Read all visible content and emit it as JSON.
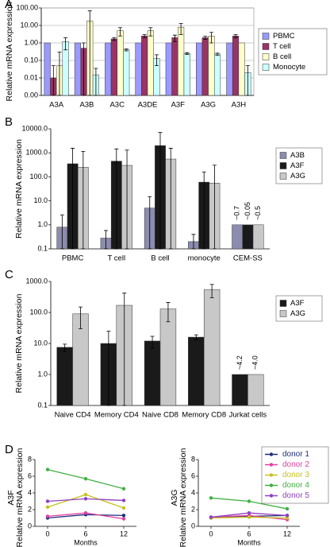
{
  "chart_data": [
    {
      "type": "bar",
      "panel_label": "A",
      "ylabel": "Relative mRNA expression",
      "log_scale": true,
      "grid": true,
      "legend": "right",
      "categories": [
        "A3A",
        "A3B",
        "A3C",
        "A3DE",
        "A3F",
        "A3G",
        "A3H"
      ],
      "ylim": [
        0.001,
        100
      ],
      "yticks": [
        {
          "value": 0.001,
          "label": "0.00"
        },
        {
          "value": 0.01,
          "label": "0.01"
        },
        {
          "value": 0.1,
          "label": "0.10"
        },
        {
          "value": 1,
          "label": "1.00"
        },
        {
          "value": 10,
          "label": "10.00"
        },
        {
          "value": 100,
          "label": "100.00"
        }
      ],
      "series": [
        {
          "name": "PBMC",
          "color": "#9999ff",
          "values": [
            1,
            1,
            1,
            1,
            1,
            1,
            1
          ]
        },
        {
          "name": "T cell",
          "color": "#993366",
          "values": [
            0.01,
            0.5,
            1.7,
            2.5,
            2,
            2,
            2.5
          ],
          "errors": [
            0.04,
            0.5,
            0.3,
            0.5,
            0.8,
            0.4,
            0.5
          ]
        },
        {
          "name": "B cell",
          "color": "#ffffcc",
          "values": [
            0.05,
            18,
            5,
            5,
            8,
            2.5,
            1
          ],
          "errors": [
            0.25,
            50,
            2.5,
            2.5,
            5,
            1.5,
            null
          ]
        },
        {
          "name": "Monocyte",
          "color": "#ccffff",
          "values": [
            1.2,
            0.015,
            0.4,
            0.13,
            0.25,
            0.23,
            0.02
          ],
          "errors": [
            0.8,
            0.02,
            0.05,
            0.08,
            0.03,
            0.03,
            0.03
          ]
        }
      ]
    },
    {
      "type": "bar",
      "panel_label": "B",
      "ylabel": "Relative mRNA expression",
      "log_scale": true,
      "grid": false,
      "legend": "right",
      "categories": [
        "PBMC",
        "T cell",
        "B cell",
        "monocyte",
        "CEM-SS"
      ],
      "ylim": [
        0.1,
        10000
      ],
      "yticks": [
        0.1,
        {
          "value": 1,
          "label": "1.0"
        },
        {
          "value": 10,
          "label": "10.0"
        },
        {
          "value": 100,
          "label": "100.0"
        },
        {
          "value": 1000,
          "label": "1000.0"
        },
        {
          "value": 10000,
          "label": "10000.0"
        }
      ],
      "annotations": [
        "~0.7",
        "~0.05",
        "~0.5"
      ],
      "series": [
        {
          "name": "A3B",
          "color": "#8c8cae",
          "values": [
            0.8,
            0.28,
            5,
            0.2,
            1
          ],
          "errors": [
            1.8,
            0.3,
            10,
            0.2,
            null
          ]
        },
        {
          "name": "A3F",
          "color": "#1a1a1a",
          "values": [
            350,
            450,
            2000,
            60,
            1
          ],
          "errors": [
            1200,
            1000,
            5000,
            100,
            null
          ]
        },
        {
          "name": "A3G",
          "color": "#c8c8c8",
          "values": [
            250,
            300,
            550,
            55,
            1
          ],
          "errors": [
            900,
            1000,
            1000,
            250,
            null
          ]
        }
      ]
    },
    {
      "type": "bar",
      "panel_label": "C",
      "ylabel": "Relative mRNA expression",
      "log_scale": true,
      "grid": false,
      "legend": "right",
      "categories": [
        "Naive CD4",
        "Memory CD4",
        "Naive CD8",
        "Memory CD8",
        "Jurkat cells"
      ],
      "ylim": [
        0.1,
        1000
      ],
      "yticks": [
        0.1,
        {
          "value": 1,
          "label": "1.0"
        },
        {
          "value": 10,
          "label": "10.0"
        },
        {
          "value": 100,
          "label": "100.0"
        },
        {
          "value": 1000,
          "label": "1000.0"
        }
      ],
      "annotations": [
        "~4.2",
        "~4.0"
      ],
      "series": [
        {
          "name": "A3F",
          "color": "#1a1a1a",
          "values": [
            7.5,
            10,
            12,
            16,
            1
          ],
          "errors": [
            2,
            15,
            5,
            3,
            null
          ]
        },
        {
          "name": "A3G",
          "color": "#c8c8c8",
          "values": [
            90,
            170,
            130,
            550,
            1
          ],
          "errors": [
            60,
            250,
            80,
            250,
            null
          ]
        }
      ]
    },
    {
      "type": "line",
      "panel_label": "D",
      "gene": "A3F",
      "ylabel": "Relative mRNA expression",
      "xlabel": "Months",
      "legend": "none",
      "x": [
        0,
        6,
        12
      ],
      "xlim": [
        -2,
        14
      ],
      "xticks": [
        0,
        6,
        12
      ],
      "ylim": [
        0,
        8
      ],
      "yticks": [
        0,
        2,
        4,
        6,
        8
      ],
      "series": [
        {
          "name": "donor 1",
          "color": "#1f2e7a",
          "values": [
            1.0,
            1.4,
            1.3
          ]
        },
        {
          "name": "donor 2",
          "color": "#e040a0",
          "values": [
            1.2,
            1.6,
            0.9
          ]
        },
        {
          "name": "donor 3",
          "color": "#c8c020",
          "values": [
            2.3,
            3.8,
            2.2
          ]
        },
        {
          "name": "donor 4",
          "color": "#40b040",
          "values": [
            6.8,
            5.7,
            4.5
          ]
        },
        {
          "name": "donor 5",
          "color": "#9040c0",
          "values": [
            3.0,
            3.3,
            3.1
          ]
        }
      ]
    },
    {
      "type": "line",
      "gene": "A3G",
      "ylabel": "Relative mRNA expression",
      "xlabel": "Months",
      "legend": "top-right",
      "x": [
        0,
        6,
        12
      ],
      "xlim": [
        -2,
        14
      ],
      "xticks": [
        0,
        6,
        12
      ],
      "ylim": [
        0,
        8
      ],
      "yticks": [
        0,
        2,
        4,
        6,
        8
      ],
      "series": [
        {
          "name": "donor 1",
          "color": "#1f2e7a",
          "values": [
            1.0,
            1.2,
            1.3
          ]
        },
        {
          "name": "donor 2",
          "color": "#e040a0",
          "values": [
            1.1,
            1.3,
            0.8
          ]
        },
        {
          "name": "donor 3",
          "color": "#c8c020",
          "values": [
            1.0,
            1.1,
            1.0
          ]
        },
        {
          "name": "donor 4",
          "color": "#40b040",
          "values": [
            3.4,
            3.0,
            2.1
          ]
        },
        {
          "name": "donor 5",
          "color": "#9040c0",
          "values": [
            1.1,
            1.6,
            1.3
          ]
        }
      ]
    }
  ]
}
